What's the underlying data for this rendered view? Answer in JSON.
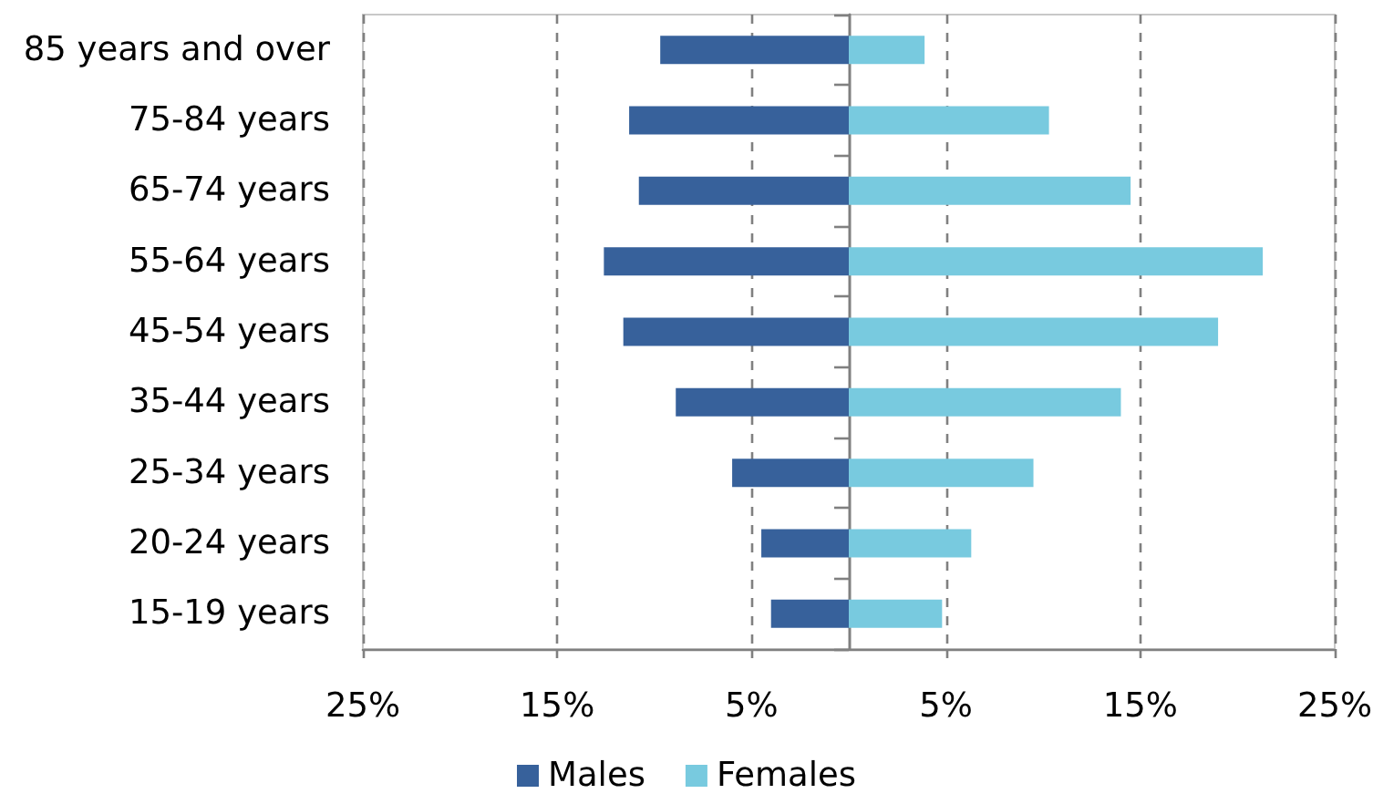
{
  "chart_data": {
    "type": "bar",
    "orientation": "horizontal",
    "stacked": true,
    "categories": [
      "85 years and over",
      "75-84 years",
      "65-74 years",
      "55-64 years",
      "45-54 years",
      "35-44 years",
      "25-34 years",
      "20-24 years",
      "15-19 years"
    ],
    "series": [
      {
        "name": "Males",
        "color": "#37619b",
        "values": [
          -9.7,
          -11.3,
          -10.8,
          -12.6,
          -11.6,
          -8.9,
          -6.0,
          -4.5,
          -4.0
        ]
      },
      {
        "name": "Females",
        "color": "#78cadf",
        "values": [
          3.9,
          10.3,
          14.5,
          21.3,
          19.0,
          14.0,
          9.5,
          6.3,
          4.8
        ]
      }
    ],
    "xlim": [
      -25,
      25
    ],
    "xticks": [
      {
        "value": -25,
        "label": "25%"
      },
      {
        "value": -15,
        "label": "15%"
      },
      {
        "value": -5,
        "label": "5%"
      },
      {
        "value": 5,
        "label": "5%"
      },
      {
        "value": 15,
        "label": "15%"
      },
      {
        "value": 25,
        "label": "25%"
      }
    ],
    "grid": "x",
    "legend": "bottom"
  }
}
